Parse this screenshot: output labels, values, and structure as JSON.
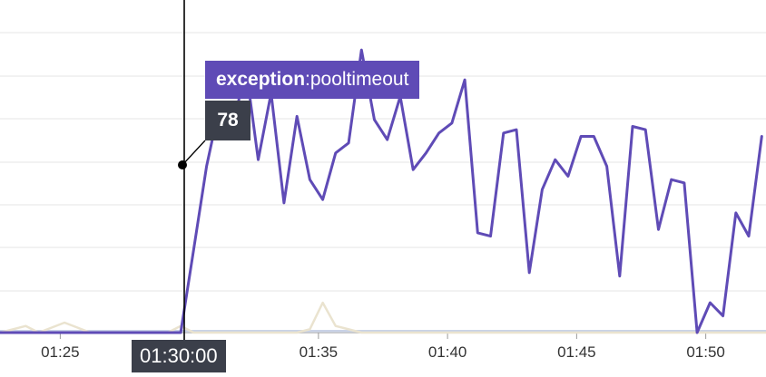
{
  "chart_data": {
    "type": "line",
    "x_tick_labels": [
      "01:25",
      "01:35",
      "01:40",
      "01:45",
      "01:50"
    ],
    "xlim": [
      "01:22:40",
      "01:52:20"
    ],
    "ylim": [
      0,
      100
    ],
    "grid": "horizontal",
    "series": [
      {
        "name": "exception:pooltimeout",
        "color": "#5f4bb6",
        "x": [
          "01:22:40",
          "01:23:10",
          "01:23:40",
          "01:24:10",
          "01:24:40",
          "01:25:10",
          "01:25:40",
          "01:26:10",
          "01:26:40",
          "01:27:10",
          "01:27:40",
          "01:28:10",
          "01:28:40",
          "01:29:10",
          "01:29:40",
          "01:30:10",
          "01:30:40",
          "01:31:10",
          "01:31:40",
          "01:32:10",
          "01:32:40",
          "01:33:10",
          "01:33:40",
          "01:34:10",
          "01:34:40",
          "01:35:10",
          "01:35:40",
          "01:36:10",
          "01:36:40",
          "01:37:10",
          "01:37:40",
          "01:38:10",
          "01:38:40",
          "01:39:10",
          "01:39:40",
          "01:40:10",
          "01:40:40",
          "01:41:10",
          "01:41:40",
          "01:42:10",
          "01:42:40",
          "01:43:10",
          "01:43:40",
          "01:44:10",
          "01:44:40",
          "01:45:10",
          "01:45:40",
          "01:46:10",
          "01:46:40",
          "01:47:10",
          "01:47:40",
          "01:48:10",
          "01:48:40",
          "01:49:10",
          "01:49:40",
          "01:50:10",
          "01:50:40",
          "01:51:10",
          "01:51:40",
          "01:52:10"
        ],
        "values": [
          0,
          0,
          0,
          0,
          0,
          0,
          0,
          0,
          0,
          0,
          0,
          0,
          0,
          0,
          0,
          25,
          50,
          68,
          59,
          81,
          52,
          72,
          39,
          65,
          46,
          40,
          54,
          57,
          85,
          64,
          58,
          71,
          49,
          54,
          60,
          63,
          76,
          30,
          29,
          60,
          61,
          18,
          43,
          52,
          47,
          59,
          59,
          50,
          17,
          62,
          61,
          31,
          46,
          45,
          0,
          9,
          5,
          36,
          29,
          59
        ]
      },
      {
        "name": "",
        "color": "#eae3cf",
        "x": [
          "01:22:40",
          "01:23:40",
          "01:24:10",
          "01:25:10",
          "01:26:10",
          "01:27:10",
          "01:28:10",
          "01:29:10",
          "01:29:40",
          "01:30:10",
          "01:31:10",
          "01:32:10",
          "01:33:10",
          "01:34:10",
          "01:34:40",
          "01:35:10",
          "01:35:40",
          "01:36:40",
          "01:37:40",
          "01:38:40",
          "01:39:40",
          "01:40:40",
          "01:52:20"
        ],
        "values": [
          0,
          2,
          0,
          3,
          0,
          0,
          0,
          0,
          2,
          0,
          0,
          0,
          0,
          0,
          1,
          9,
          2,
          0,
          0,
          0,
          0,
          0,
          0
        ]
      },
      {
        "name": "",
        "color": "#c9d2e6",
        "x": [
          "01:22:40",
          "01:52:20"
        ],
        "values": [
          0.5,
          0.5
        ]
      }
    ],
    "hover": {
      "time": "01:30:00",
      "series_prefix": "exception",
      "series_suffix": ":pooltimeout",
      "value": "78"
    }
  }
}
